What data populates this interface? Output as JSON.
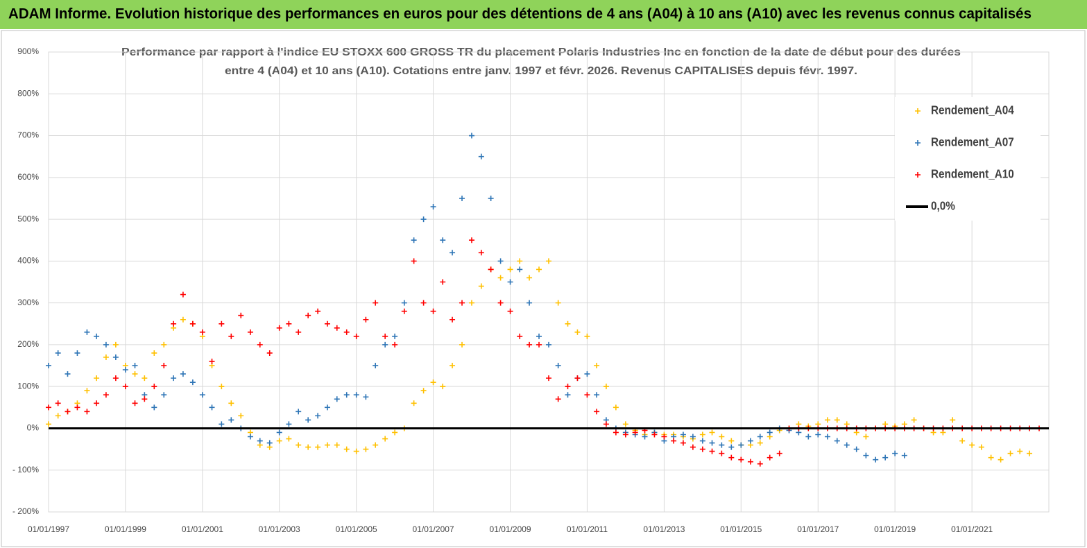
{
  "header": {
    "title": "ADAM Informe. Evolution historique des performances en euros pour des détentions de 4 ans (A04) à 10 ans (A10) avec les revenus connus capitalisés"
  },
  "chart_data": {
    "type": "scatter",
    "title": [
      "Performance par rapport à l'indice EU STOXX 600 GROSS TR  du placement Polaris Industries Inc en fonction de la date de début pour des durées",
      "entre 4 (A04) et 10 ans (A10). Cotations entre janv. 1997 et févr. 2026. Revenus CAPITALISES depuis févr. 1997."
    ],
    "xlim": [
      "1997-01-01",
      "2023-01-01"
    ],
    "xticks": [
      {
        "value": "1997-01-01",
        "label": "01/01/1997"
      },
      {
        "value": "1999-01-01",
        "label": "01/01/1999"
      },
      {
        "value": "2001-01-01",
        "label": "01/01/2001"
      },
      {
        "value": "2003-01-01",
        "label": "01/01/2003"
      },
      {
        "value": "2005-01-01",
        "label": "01/01/2005"
      },
      {
        "value": "2007-01-01",
        "label": "01/01/2007"
      },
      {
        "value": "2009-01-01",
        "label": "01/01/2009"
      },
      {
        "value": "2011-01-01",
        "label": "01/01/2011"
      },
      {
        "value": "2013-01-01",
        "label": "01/01/2013"
      },
      {
        "value": "2015-01-01",
        "label": "01/01/2015"
      },
      {
        "value": "2017-01-01",
        "label": "01/01/2017"
      },
      {
        "value": "2019-01-01",
        "label": "01/01/2019"
      },
      {
        "value": "2021-01-01",
        "label": "01/01/2021"
      }
    ],
    "ylim": [
      -200,
      900
    ],
    "yticks": [
      {
        "value": -200,
        "label": "- 200%"
      },
      {
        "value": -100,
        "label": "- 100%"
      },
      {
        "value": 0,
        "label": "0%"
      },
      {
        "value": 100,
        "label": "100%"
      },
      {
        "value": 200,
        "label": "200%"
      },
      {
        "value": 300,
        "label": "300%"
      },
      {
        "value": 400,
        "label": "400%"
      },
      {
        "value": 500,
        "label": "500%"
      },
      {
        "value": 600,
        "label": "600%"
      },
      {
        "value": 700,
        "label": "700%"
      },
      {
        "value": 800,
        "label": "800%"
      },
      {
        "value": 900,
        "label": "900%"
      }
    ],
    "grid": true,
    "legend": "upper right",
    "series": [
      {
        "name": "Rendement_A04",
        "color": "#ffc000",
        "x": [
          "1997-01-01",
          "1997-04-01",
          "1997-07-01",
          "1997-10-01",
          "1998-01-01",
          "1998-04-01",
          "1998-07-01",
          "1998-10-01",
          "1999-01-01",
          "1999-04-01",
          "1999-07-01",
          "1999-10-01",
          "2000-01-01",
          "2000-04-01",
          "2000-07-01",
          "2000-10-01",
          "2001-01-01",
          "2001-04-01",
          "2001-07-01",
          "2001-10-01",
          "2002-01-01",
          "2002-04-01",
          "2002-07-01",
          "2002-10-01",
          "2003-01-01",
          "2003-04-01",
          "2003-07-01",
          "2003-10-01",
          "2004-01-01",
          "2004-04-01",
          "2004-07-01",
          "2004-10-01",
          "2005-01-01",
          "2005-04-01",
          "2005-07-01",
          "2005-10-01",
          "2006-01-01",
          "2006-04-01",
          "2006-07-01",
          "2006-10-01",
          "2007-01-01",
          "2007-04-01",
          "2007-07-01",
          "2007-10-01",
          "2008-01-01",
          "2008-04-01",
          "2008-07-01",
          "2008-10-01",
          "2009-01-01",
          "2009-04-01",
          "2009-07-01",
          "2009-10-01",
          "2010-01-01",
          "2010-04-01",
          "2010-07-01",
          "2010-10-01",
          "2011-01-01",
          "2011-04-01",
          "2011-07-01",
          "2011-10-01",
          "2012-01-01",
          "2012-04-01",
          "2012-07-01",
          "2012-10-01",
          "2013-01-01",
          "2013-04-01",
          "2013-07-01",
          "2013-10-01",
          "2014-01-01",
          "2014-04-01",
          "2014-07-01",
          "2014-10-01",
          "2015-01-01",
          "2015-04-01",
          "2015-07-01",
          "2015-10-01",
          "2016-01-01",
          "2016-04-01",
          "2016-07-01",
          "2016-10-01",
          "2017-01-01",
          "2017-04-01",
          "2017-07-01",
          "2017-10-01",
          "2018-01-01",
          "2018-04-01",
          "2018-07-01",
          "2018-10-01",
          "2019-01-01",
          "2019-04-01",
          "2019-07-01",
          "2019-10-01",
          "2020-01-01",
          "2020-04-01",
          "2020-07-01",
          "2020-10-01",
          "2021-01-01",
          "2021-04-01",
          "2021-07-01",
          "2021-10-01",
          "2022-01-01",
          "2022-04-01",
          "2022-07-01"
        ],
        "values": [
          10,
          30,
          40,
          60,
          90,
          120,
          170,
          200,
          150,
          130,
          120,
          180,
          200,
          240,
          260,
          250,
          220,
          150,
          100,
          60,
          30,
          -10,
          -40,
          -45,
          -30,
          -25,
          -40,
          -45,
          -45,
          -40,
          -40,
          -50,
          -55,
          -50,
          -40,
          -25,
          -10,
          0,
          60,
          90,
          110,
          100,
          150,
          200,
          300,
          340,
          380,
          360,
          380,
          400,
          360,
          380,
          400,
          300,
          250,
          230,
          220,
          150,
          100,
          50,
          10,
          -5,
          -15,
          -10,
          -15,
          -15,
          -20,
          -25,
          -15,
          -10,
          -20,
          -30,
          -40,
          -40,
          -35,
          -20,
          -5,
          0,
          10,
          5,
          10,
          20,
          20,
          10,
          -10,
          -20,
          0,
          10,
          5,
          10,
          20,
          0,
          -10,
          -10,
          20,
          -30,
          -40,
          -45,
          -70,
          -75,
          -60,
          -55,
          -60
        ]
      },
      {
        "name": "Rendement_A07",
        "color": "#2e75b6",
        "x": [
          "1997-01-01",
          "1997-04-01",
          "1997-07-01",
          "1997-10-01",
          "1998-01-01",
          "1998-04-01",
          "1998-07-01",
          "1998-10-01",
          "1999-01-01",
          "1999-04-01",
          "1999-07-01",
          "1999-10-01",
          "2000-01-01",
          "2000-04-01",
          "2000-07-01",
          "2000-10-01",
          "2001-01-01",
          "2001-04-01",
          "2001-07-01",
          "2001-10-01",
          "2002-01-01",
          "2002-04-01",
          "2002-07-01",
          "2002-10-01",
          "2003-01-01",
          "2003-04-01",
          "2003-07-01",
          "2003-10-01",
          "2004-01-01",
          "2004-04-01",
          "2004-07-01",
          "2004-10-01",
          "2005-01-01",
          "2005-04-01",
          "2005-07-01",
          "2005-10-01",
          "2006-01-01",
          "2006-04-01",
          "2006-07-01",
          "2006-10-01",
          "2007-01-01",
          "2007-04-01",
          "2007-07-01",
          "2007-10-01",
          "2008-01-01",
          "2008-04-01",
          "2008-07-01",
          "2008-10-01",
          "2009-01-01",
          "2009-04-01",
          "2009-07-01",
          "2009-10-01",
          "2010-01-01",
          "2010-04-01",
          "2010-07-01",
          "2010-10-01",
          "2011-01-01",
          "2011-04-01",
          "2011-07-01",
          "2011-10-01",
          "2012-01-01",
          "2012-04-01",
          "2012-07-01",
          "2012-10-01",
          "2013-01-01",
          "2013-04-01",
          "2013-07-01",
          "2013-10-01",
          "2014-01-01",
          "2014-04-01",
          "2014-07-01",
          "2014-10-01",
          "2015-01-01",
          "2015-04-01",
          "2015-07-01",
          "2015-10-01",
          "2016-01-01",
          "2016-04-01",
          "2016-07-01",
          "2016-10-01",
          "2017-01-01",
          "2017-04-01",
          "2017-07-01",
          "2017-10-01",
          "2018-01-01",
          "2018-04-01",
          "2018-07-01",
          "2018-10-01",
          "2019-01-01",
          "2019-04-01"
        ],
        "values": [
          150,
          180,
          130,
          180,
          230,
          220,
          200,
          170,
          140,
          150,
          80,
          50,
          80,
          120,
          130,
          110,
          80,
          50,
          10,
          20,
          0,
          -20,
          -30,
          -35,
          -10,
          10,
          40,
          20,
          30,
          50,
          70,
          80,
          80,
          75,
          150,
          200,
          220,
          300,
          450,
          500,
          530,
          450,
          420,
          550,
          700,
          650,
          550,
          400,
          350,
          380,
          300,
          220,
          200,
          150,
          80,
          120,
          130,
          80,
          20,
          0,
          -10,
          -15,
          -20,
          -10,
          -30,
          -20,
          -15,
          -20,
          -30,
          -35,
          -40,
          -45,
          -40,
          -30,
          -20,
          -10,
          0,
          -5,
          -10,
          -20,
          -15,
          -20,
          -30,
          -40,
          -50,
          -65,
          -75,
          -70,
          -60,
          -65
        ]
      },
      {
        "name": "Rendement_A10",
        "color": "#ff0000",
        "x": [
          "1997-01-01",
          "1997-04-01",
          "1997-07-01",
          "1997-10-01",
          "1998-01-01",
          "1998-04-01",
          "1998-07-01",
          "1998-10-01",
          "1999-01-01",
          "1999-04-01",
          "1999-07-01",
          "1999-10-01",
          "2000-01-01",
          "2000-04-01",
          "2000-07-01",
          "2000-10-01",
          "2001-01-01",
          "2001-04-01",
          "2001-07-01",
          "2001-10-01",
          "2002-01-01",
          "2002-04-01",
          "2002-07-01",
          "2002-10-01",
          "2003-01-01",
          "2003-04-01",
          "2003-07-01",
          "2003-10-01",
          "2004-01-01",
          "2004-04-01",
          "2004-07-01",
          "2004-10-01",
          "2005-01-01",
          "2005-04-01",
          "2005-07-01",
          "2005-10-01",
          "2006-01-01",
          "2006-04-01",
          "2006-07-01",
          "2006-10-01",
          "2007-01-01",
          "2007-04-01",
          "2007-07-01",
          "2007-10-01",
          "2008-01-01",
          "2008-04-01",
          "2008-07-01",
          "2008-10-01",
          "2009-01-01",
          "2009-04-01",
          "2009-07-01",
          "2009-10-01",
          "2010-01-01",
          "2010-04-01",
          "2010-07-01",
          "2010-10-01",
          "2011-01-01",
          "2011-04-01",
          "2011-07-01",
          "2011-10-01",
          "2012-01-01",
          "2012-04-01",
          "2012-07-01",
          "2012-10-01",
          "2013-01-01",
          "2013-04-01",
          "2013-07-01",
          "2013-10-01",
          "2014-01-01",
          "2014-04-01",
          "2014-07-01",
          "2014-10-01",
          "2015-01-01",
          "2015-04-01",
          "2015-07-01",
          "2015-10-01",
          "2016-01-01",
          "2016-04-01",
          "2016-07-01",
          "2016-10-01",
          "2017-01-01",
          "2017-04-01",
          "2017-07-01",
          "2017-10-01",
          "2018-01-01",
          "2018-04-01",
          "2018-07-01",
          "2018-10-01",
          "2019-01-01",
          "2019-04-01",
          "2019-07-01",
          "2019-10-01",
          "2020-01-01",
          "2020-04-01",
          "2020-07-01",
          "2020-10-01",
          "2021-01-01",
          "2021-04-01",
          "2021-07-01",
          "2021-10-01",
          "2022-01-01",
          "2022-04-01",
          "2022-07-01",
          "2022-10-01"
        ],
        "values": [
          50,
          60,
          40,
          50,
          40,
          60,
          80,
          120,
          100,
          60,
          70,
          100,
          150,
          250,
          320,
          250,
          230,
          160,
          250,
          220,
          270,
          230,
          200,
          180,
          240,
          250,
          230,
          270,
          280,
          250,
          240,
          230,
          220,
          260,
          300,
          220,
          200,
          280,
          400,
          300,
          280,
          350,
          260,
          300,
          450,
          420,
          380,
          300,
          280,
          220,
          200,
          200,
          120,
          70,
          100,
          120,
          80,
          40,
          10,
          -10,
          -15,
          -10,
          -5,
          -15,
          -20,
          -30,
          -35,
          -45,
          -50,
          -55,
          -60,
          -70,
          -75,
          -80,
          -85,
          -70,
          -60,
          0,
          0,
          0,
          0,
          0,
          0,
          0,
          0,
          0,
          0,
          0,
          0,
          0,
          0,
          0,
          0,
          0,
          0,
          0,
          0,
          0,
          0,
          0,
          0,
          0,
          0,
          0
        ]
      },
      {
        "name": "0,0%",
        "color": "#000000",
        "type": "line",
        "x": [
          "1997-01-01",
          "2023-01-01"
        ],
        "values": [
          0,
          0
        ]
      }
    ]
  }
}
